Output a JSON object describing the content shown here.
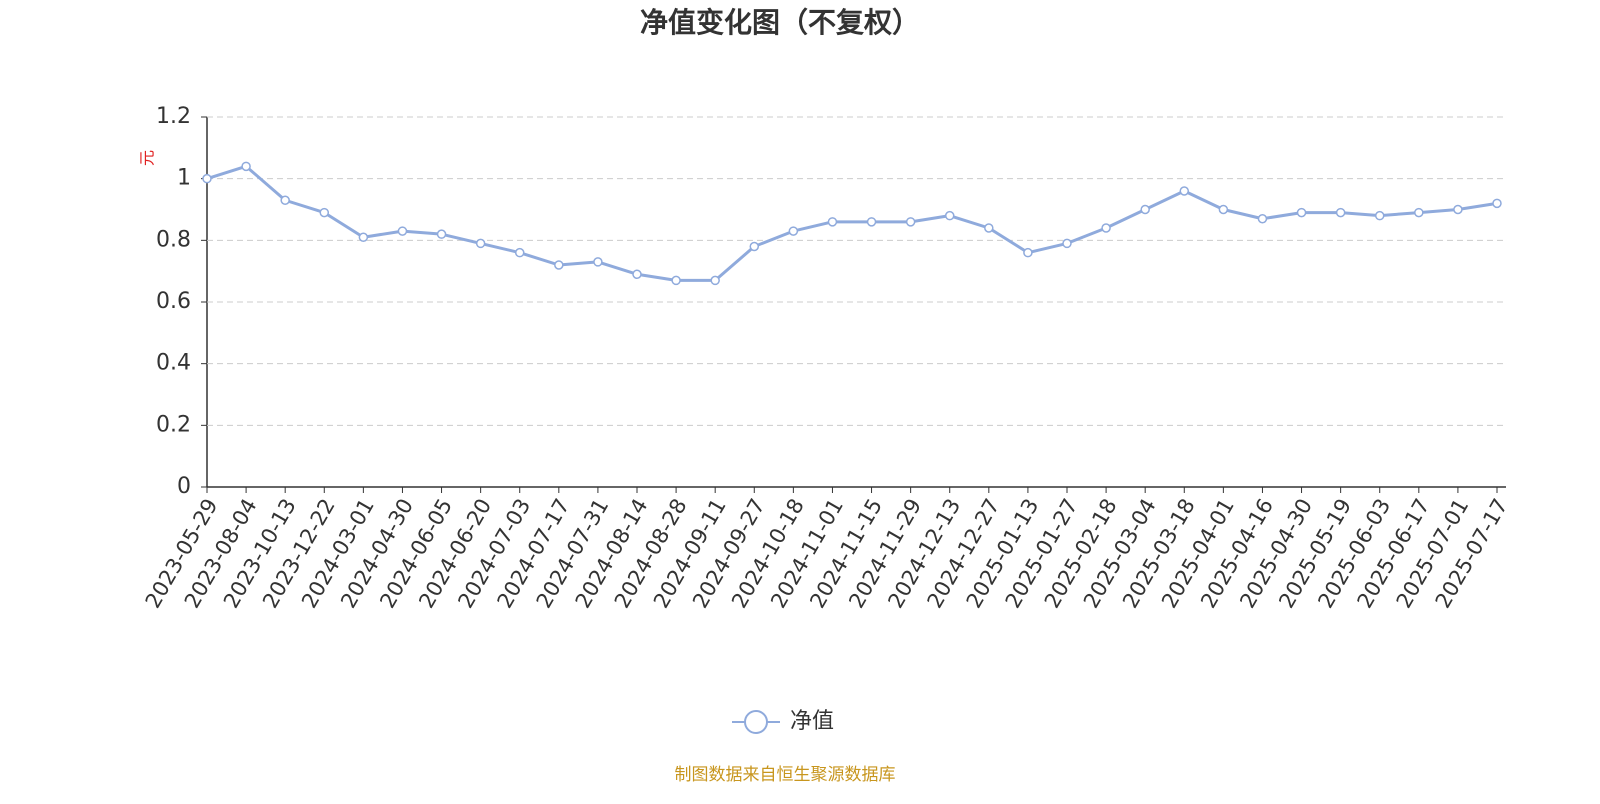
{
  "chart_data": {
    "type": "line",
    "title": "净值变化图（不复权）",
    "y_label": "元",
    "source": "制图数据来自恒生聚源数据库",
    "categories": [
      "2023-05-29",
      "2023-08-04",
      "2023-10-13",
      "2023-12-22",
      "2024-03-01",
      "2024-04-30",
      "2024-06-05",
      "2024-06-20",
      "2024-07-03",
      "2024-07-17",
      "2024-07-31",
      "2024-08-14",
      "2024-08-28",
      "2024-09-11",
      "2024-09-27",
      "2024-10-18",
      "2024-11-01",
      "2024-11-15",
      "2024-11-29",
      "2024-12-13",
      "2024-12-27",
      "2025-01-13",
      "2025-01-27",
      "2025-02-18",
      "2025-03-04",
      "2025-03-18",
      "2025-04-01",
      "2025-04-16",
      "2025-04-30",
      "2025-05-19",
      "2025-06-03",
      "2025-06-17",
      "2025-07-01",
      "2025-07-17"
    ],
    "series": [
      {
        "name": "净值",
        "color": "#8faadc",
        "values": [
          1.0,
          1.04,
          0.93,
          0.89,
          0.81,
          0.83,
          0.82,
          0.79,
          0.76,
          0.72,
          0.73,
          0.69,
          0.67,
          0.67,
          0.78,
          0.83,
          0.86,
          0.86,
          0.86,
          0.88,
          0.84,
          0.76,
          0.79,
          0.84,
          0.9,
          0.96,
          0.9,
          0.87,
          0.89,
          0.89,
          0.88,
          0.89,
          0.9,
          0.92
        ]
      }
    ],
    "ylim": [
      0,
      1.2
    ],
    "yticks": [
      0,
      0.2,
      0.4,
      0.6,
      0.8,
      1,
      1.2
    ],
    "grid": true
  }
}
